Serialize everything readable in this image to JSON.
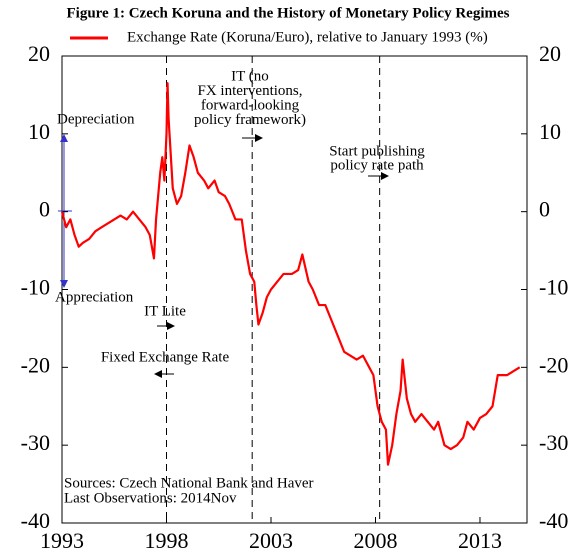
{
  "chart_data": {
    "type": "line",
    "title": "Figure 1: Czech Koruna and the History of Monetary Policy Regimes",
    "xlim": [
      1993,
      2015.25
    ],
    "xticks": [
      1993,
      1998,
      2003,
      2008,
      2013
    ],
    "ylim": [
      -40,
      20
    ],
    "yticks": [
      20,
      10,
      0,
      -10,
      -20,
      -30,
      -40
    ],
    "vlines": [
      1998,
      2002.1,
      2008.2
    ],
    "series": [
      {
        "name": "Exchange Rate (Koruna/Euro), relative to January 1993 (%)",
        "color": "#ff0000",
        "x": [
          1993.0,
          1993.2,
          1993.4,
          1993.6,
          1993.8,
          1994.0,
          1994.3,
          1994.6,
          1994.9,
          1995.2,
          1995.5,
          1995.8,
          1996.1,
          1996.4,
          1996.7,
          1997.0,
          1997.2,
          1997.4,
          1997.5,
          1997.7,
          1997.8,
          1997.9,
          1998.0,
          1998.05,
          1998.1,
          1998.3,
          1998.5,
          1998.7,
          1998.9,
          1999.1,
          1999.3,
          1999.5,
          1999.8,
          2000.0,
          2000.3,
          2000.5,
          2000.8,
          2001.0,
          2001.3,
          2001.6,
          2001.8,
          2002.0,
          2002.2,
          2002.3,
          2002.4,
          2002.6,
          2002.8,
          2003.0,
          2003.3,
          2003.6,
          2004.0,
          2004.3,
          2004.5,
          2004.8,
          2005.0,
          2005.3,
          2005.6,
          2005.9,
          2006.2,
          2006.5,
          2006.8,
          2007.1,
          2007.4,
          2007.7,
          2007.9,
          2008.1,
          2008.3,
          2008.5,
          2008.6,
          2008.8,
          2009.0,
          2009.2,
          2009.3,
          2009.5,
          2009.7,
          2009.9,
          2010.2,
          2010.5,
          2010.8,
          2011.0,
          2011.3,
          2011.6,
          2011.9,
          2012.2,
          2012.4,
          2012.7,
          2013.0,
          2013.3,
          2013.6,
          2013.85,
          2014.0,
          2014.3,
          2014.6,
          2014.9
        ],
        "values": [
          0,
          -2,
          -1,
          -3,
          -4.5,
          -4,
          -3.5,
          -2.5,
          -2,
          -1.5,
          -1,
          -0.5,
          -1,
          0,
          -1,
          -2,
          -3,
          -6,
          -1,
          5,
          7,
          4,
          10,
          16.5,
          12,
          3,
          1,
          2,
          5,
          8.5,
          7,
          5,
          4,
          3,
          4,
          2.5,
          2,
          1,
          -1,
          -1,
          -5,
          -8,
          -9,
          -12,
          -14.5,
          -13,
          -11,
          -10,
          -9,
          -8,
          -8,
          -7.5,
          -5.5,
          -9,
          -10,
          -12,
          -12,
          -14,
          -16,
          -18,
          -18.5,
          -19,
          -18.5,
          -20,
          -21,
          -25,
          -27,
          -28,
          -32.5,
          -30,
          -26,
          -23,
          -19,
          -24,
          -26,
          -27,
          -26,
          -27,
          -28,
          -27,
          -30,
          -30.5,
          -30,
          -29,
          -27,
          -28,
          -26.5,
          -26,
          -25,
          -21,
          -21,
          -21,
          -20.5,
          -20
        ]
      }
    ],
    "annotations": {
      "depreciation": "Depreciation",
      "appreciation": "Appreciation",
      "it_lite": "IT Lite",
      "fixed": "Fixed Exchange Rate",
      "it_regime": [
        "IT (no",
        "FX interventions,",
        "forward-looking",
        "policy framework)"
      ],
      "rate_path": [
        "Start publishing",
        "policy rate path"
      ],
      "sources": [
        "Sources: Czech National Bank and Haver",
        "Last Observations: 2014Nov"
      ]
    }
  }
}
